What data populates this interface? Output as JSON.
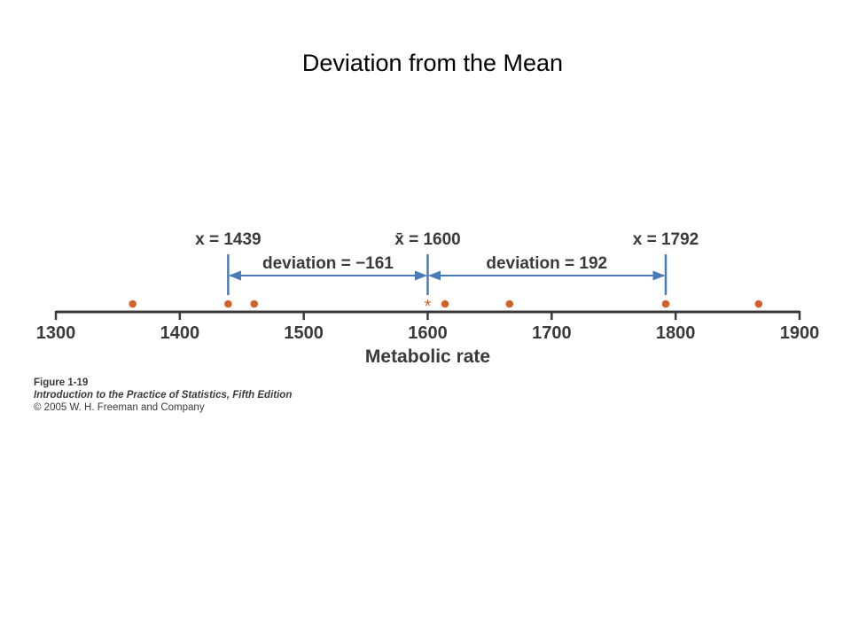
{
  "slide": {
    "title": "Deviation from the Mean"
  },
  "chart_data": {
    "type": "scatter",
    "title": "",
    "xlabel": "Metabolic rate",
    "xlim": [
      1300,
      1900
    ],
    "ticks": [
      1300,
      1400,
      1500,
      1600,
      1700,
      1800,
      1900
    ],
    "tick_labels": [
      "1300",
      "1400",
      "1500",
      "1600",
      "1700",
      "1800",
      "1900"
    ],
    "points": [
      1362,
      1439,
      1460,
      1614,
      1666,
      1792,
      1867
    ],
    "point_color": "#d2622a",
    "mean": {
      "value": 1600,
      "marker": "*",
      "label": "x̄ = 1600",
      "marker_color": "#d2622a"
    },
    "annotations": [
      {
        "value": 1439,
        "label": "x = 1439"
      },
      {
        "value": 1792,
        "label": "x = 1792"
      }
    ],
    "deviations": [
      {
        "from": 1439,
        "to": 1600,
        "label": "deviation = −161"
      },
      {
        "from": 1600,
        "to": 1792,
        "label": "deviation = 192"
      }
    ],
    "arrow_color": "#4a7ab8"
  },
  "caption": {
    "figure": "Figure 1-19",
    "book": "Introduction to the Practice of Statistics, Fifth Edition",
    "copyright": "© 2005 W. H. Freeman and Company"
  }
}
